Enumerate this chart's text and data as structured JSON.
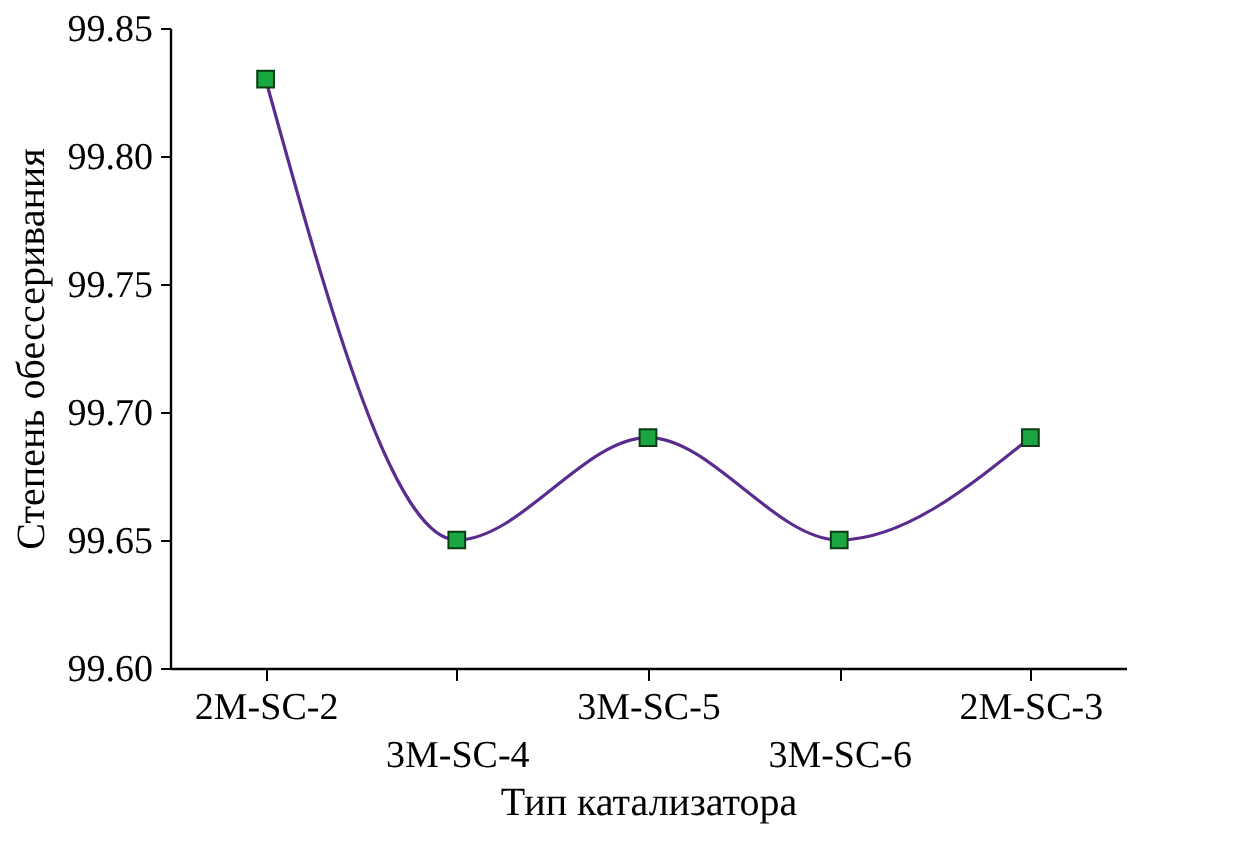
{
  "chart_data": {
    "type": "line",
    "xlabel": "Тип катализатора",
    "ylabel": "Степень обессеривания",
    "categories": [
      "2M-SC-2",
      "3M-SC-4",
      "3M-SC-5",
      "3M-SC-6",
      "2M-SC-3"
    ],
    "series": [
      {
        "color": "#5b2c8f",
        "values": [
          99.83,
          99.65,
          99.69,
          99.65,
          99.69
        ]
      }
    ],
    "ylim": [
      99.6,
      99.85
    ],
    "yticks": [
      {
        "value": 99.6,
        "label": "99.60"
      },
      {
        "value": 99.65,
        "label": "99.65"
      },
      {
        "value": 99.7,
        "label": "99.70"
      },
      {
        "value": 99.75,
        "label": "99.75"
      },
      {
        "value": 99.8,
        "label": "99.80"
      },
      {
        "value": 99.85,
        "label": "99.85"
      }
    ],
    "marker": "square",
    "line_style": "solid",
    "grid": false
  }
}
